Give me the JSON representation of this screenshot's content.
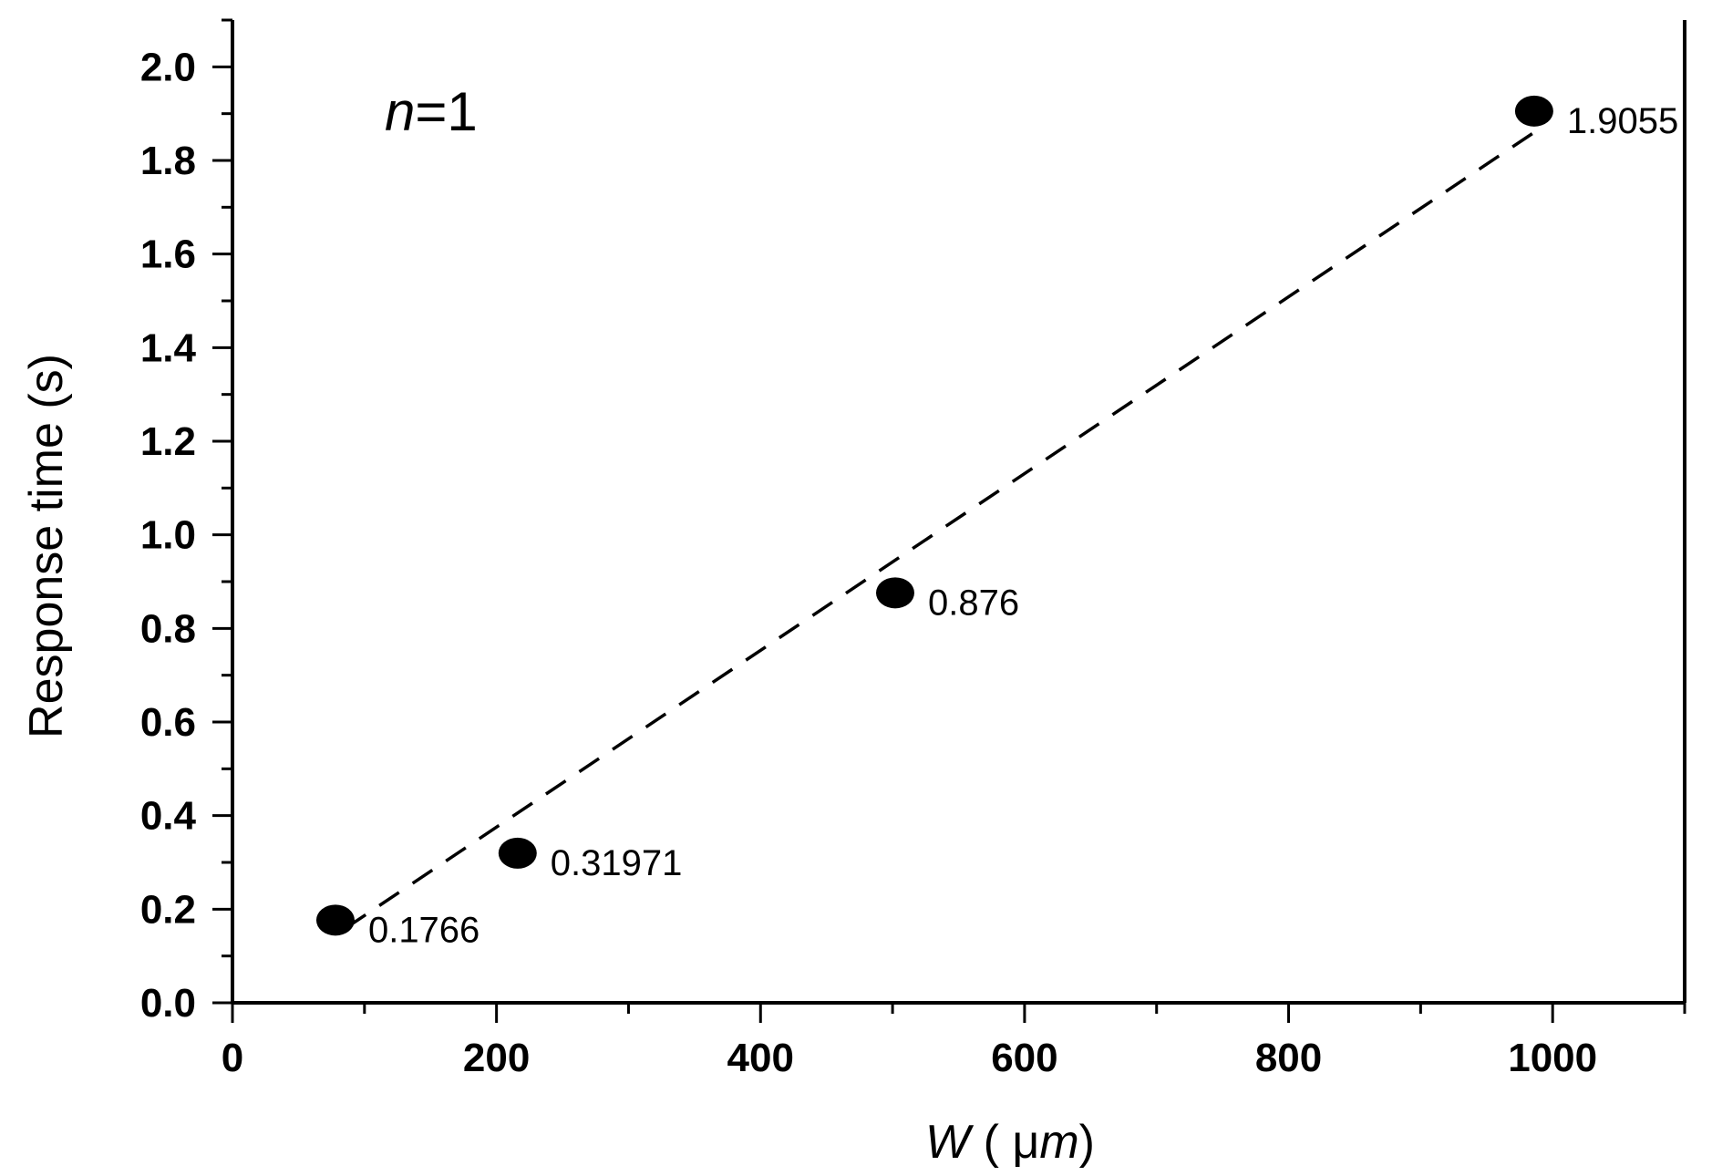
{
  "chart_data": {
    "type": "scatter",
    "title": "",
    "xlabel": {
      "var": "W",
      "open": " ( ",
      "mu": "μ",
      "m": "m",
      "close": ")"
    },
    "ylabel": "Response time (s)",
    "annotation": {
      "var": "n",
      "rest": "=1"
    },
    "xlim": [
      0,
      1100
    ],
    "ylim": [
      0,
      2.1
    ],
    "x_major_ticks": [
      0,
      200,
      400,
      600,
      800,
      1000
    ],
    "x_tick_labels": [
      "0",
      "200",
      "400",
      "600",
      "800",
      "1000"
    ],
    "x_minor_ticks": [
      100,
      300,
      500,
      700,
      900,
      1100
    ],
    "y_major_ticks": [
      0.0,
      0.2,
      0.4,
      0.6,
      0.8,
      1.0,
      1.2,
      1.4,
      1.6,
      1.8,
      2.0
    ],
    "y_tick_labels": [
      "0.0",
      "0.2",
      "0.4",
      "0.6",
      "0.8",
      "1.0",
      "1.2",
      "1.4",
      "1.6",
      "1.8",
      "2.0"
    ],
    "y_minor_ticks": [
      0.1,
      0.3,
      0.5,
      0.7,
      0.9,
      1.1,
      1.3,
      1.5,
      1.7,
      1.9,
      2.1
    ],
    "grid": false,
    "points": [
      {
        "x": 78,
        "y": 0.1766,
        "label": "0.1766"
      },
      {
        "x": 216,
        "y": 0.31971,
        "label": "0.31971"
      },
      {
        "x": 502,
        "y": 0.876,
        "label": "0.876"
      },
      {
        "x": 986,
        "y": 1.9055,
        "label": "1.9055"
      }
    ],
    "fit_line": {
      "style": "dashed",
      "x": [
        86,
        986
      ],
      "y": [
        0.16,
        1.86
      ]
    },
    "colors": {
      "marker": "#000000",
      "line": "#000000",
      "axis": "#000000"
    }
  }
}
